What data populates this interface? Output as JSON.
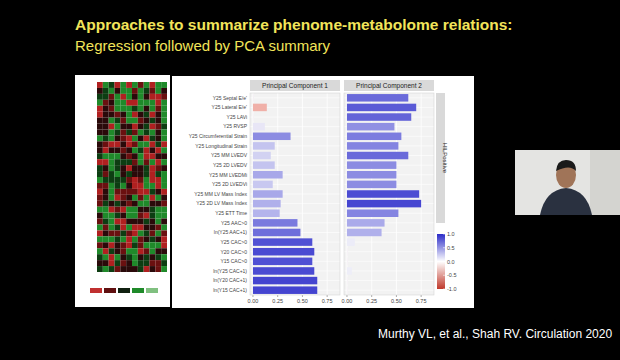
{
  "slide": {
    "title": "Approaches to summarize phenome-metabolome relations:",
    "subtitle": "Regression followed by PCA summary",
    "citation": "Murthy VL, et al., Shah RV. Circulation 2020"
  },
  "chart_data": {
    "type": "bar",
    "orientation": "horizontal",
    "grid": true,
    "panel_label": "HILPositive",
    "categories": [
      "Y25 Septal E/e'",
      "Y25 Lateral E/e'",
      "Y25 LAVi",
      "Y25 RVSP",
      "Y25 Circumferential Strain",
      "Y25 Longitudinal Strain",
      "Y25 MM LVEDV",
      "Y25 2D LVEDV",
      "Y25 MM LVEDMi",
      "Y25 2D LVEDVi",
      "Y25 MM LV Mass Index",
      "Y25 2D LV Mass Index",
      "Y25 ETT Time",
      "Y25 AAC>0",
      "ln(Y25 AAC+1)",
      "Y25 CAC>0",
      "Y20 CAC>0",
      "Y15 CAC>0",
      "ln(Y25 CAC+1)",
      "ln(Y20 CAC+1)",
      "ln(Y15 CAC+1)"
    ],
    "series": [
      {
        "name": "Principal Component 1",
        "values": [
          0.01,
          0.14,
          0.01,
          0.12,
          0.38,
          0.22,
          0.18,
          0.22,
          0.3,
          0.2,
          0.3,
          0.28,
          0.27,
          0.45,
          0.48,
          0.6,
          0.62,
          0.6,
          0.62,
          0.65,
          0.65
        ],
        "colors": [
          "#f4f0f4",
          "#f0b0a8",
          "#f6f2f6",
          "#e8e6f6",
          "#8c8ce2",
          "#c4c4ef",
          "#d2d2f2",
          "#c4c4ef",
          "#a8a8e9",
          "#c8c8f0",
          "#a8a8e9",
          "#b0b0eb",
          "#b4b4ec",
          "#7a7ade",
          "#6e6edb",
          "#5050d4",
          "#4a4ad2",
          "#5050d4",
          "#4a4ad2",
          "#4444d0",
          "#4444d0"
        ]
      },
      {
        "name": "Principal Component 2",
        "values": [
          0.62,
          0.7,
          0.65,
          0.48,
          0.55,
          0.52,
          0.62,
          0.5,
          0.5,
          0.5,
          0.73,
          0.75,
          0.52,
          0.38,
          0.35,
          0.08,
          0.01,
          0.01,
          0.05,
          0.01,
          0.01
        ],
        "colors": [
          "#6a6ada",
          "#5a5ad6",
          "#6464d8",
          "#9090e3",
          "#7c7cdf",
          "#8484e1",
          "#6a6ada",
          "#8c8ce2",
          "#8c8ce2",
          "#8c8ce2",
          "#4c4cd3",
          "#4646d1",
          "#8484e1",
          "#aaaaea",
          "#b0b0eb",
          "#ececf8",
          "#f6f2f6",
          "#f6f2f6",
          "#eeeef8",
          "#f6f2f6",
          "#f6f2f6"
        ]
      }
    ],
    "xlim": [
      -0.03,
      0.88
    ],
    "xticks": [
      {
        "value": 0,
        "label": "0.00"
      },
      {
        "value": 0.25,
        "label": "0.25"
      },
      {
        "value": 0.5,
        "label": "0.50"
      },
      {
        "value": 0.75,
        "label": "0.75"
      }
    ],
    "colorbar": {
      "range": [
        -1,
        1
      ],
      "colors": [
        "#c0392b",
        "#ffffff",
        "#2c2cc8"
      ],
      "ticks": [
        {
          "value": 1,
          "label": "1.0"
        },
        {
          "value": 0.5,
          "label": "0.5"
        },
        {
          "value": 0,
          "label": "0.0"
        },
        {
          "value": -0.5,
          "label": "-0.5"
        },
        {
          "value": -1,
          "label": "-1.0"
        }
      ]
    }
  }
}
